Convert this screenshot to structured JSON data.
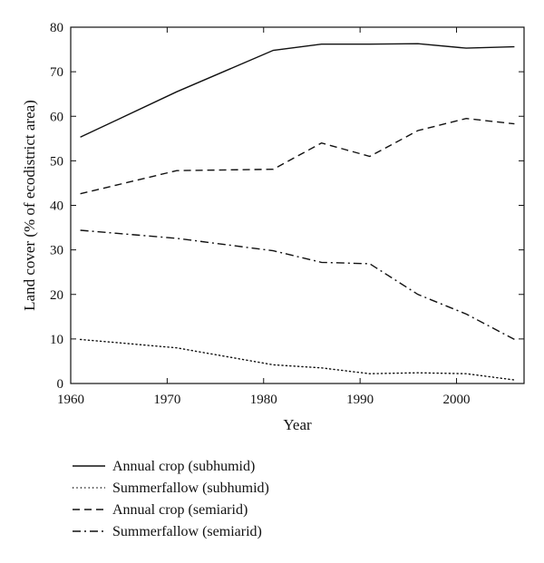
{
  "chart_data": {
    "type": "line",
    "title": "",
    "xlabel": "Year",
    "ylabel": "Land cover (% of ecodistrict area)",
    "xlim": [
      1960,
      2007
    ],
    "ylim": [
      0,
      80
    ],
    "xticks": [
      1960,
      1970,
      1980,
      1990,
      2000
    ],
    "yticks": [
      0,
      10,
      20,
      30,
      40,
      50,
      60,
      70,
      80
    ],
    "grid": false,
    "legend_position": "below",
    "series": [
      {
        "name": "Annual crop (subhumid)",
        "style": "solid",
        "x": [
          1961,
          1971,
          1981,
          1986,
          1991,
          1996,
          2001,
          2006
        ],
        "y": [
          55.3,
          65.5,
          74.8,
          76.2,
          76.2,
          76.3,
          75.3,
          75.6
        ]
      },
      {
        "name": "Summerfallow (subhumid)",
        "style": "dotted",
        "x": [
          1961,
          1971,
          1981,
          1986,
          1991,
          1996,
          2001,
          2006
        ],
        "y": [
          9.9,
          8.0,
          4.2,
          3.5,
          2.2,
          2.4,
          2.2,
          0.8
        ]
      },
      {
        "name": "Annual crop (semiarid)",
        "style": "dashed",
        "x": [
          1961,
          1971,
          1981,
          1986,
          1991,
          1996,
          2001,
          2006
        ],
        "y": [
          42.6,
          47.8,
          48.1,
          54.0,
          51.0,
          56.8,
          59.5,
          58.3
        ]
      },
      {
        "name": "Summerfallow (semiarid)",
        "style": "dashdot",
        "x": [
          1961,
          1971,
          1981,
          1986,
          1991,
          1996,
          2001,
          2006
        ],
        "y": [
          34.4,
          32.6,
          29.8,
          27.2,
          26.9,
          20.0,
          15.6,
          9.9
        ]
      }
    ]
  }
}
